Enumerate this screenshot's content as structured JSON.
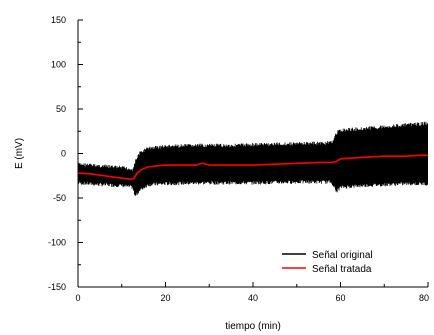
{
  "chart_data": {
    "type": "line",
    "title": "",
    "xlabel": "tiempo (min)",
    "ylabel": "E (mV)",
    "xlim": [
      0,
      80
    ],
    "ylim": [
      -150,
      150
    ],
    "x_ticks": [
      0,
      20,
      40,
      60,
      80
    ],
    "y_ticks": [
      -150,
      -100,
      -50,
      0,
      50,
      100,
      150
    ],
    "x_tick_labels": [
      "0",
      "20",
      "40",
      "60",
      "80"
    ],
    "y_tick_labels": [
      "-150",
      "-100",
      "-50",
      "0",
      "50",
      "100",
      "150"
    ],
    "grid": false,
    "legend_position": "bottom-right",
    "series": [
      {
        "name": "Señal original",
        "color": "#000000",
        "style": "noisy-band",
        "x": [
          0,
          5,
          10,
          12.5,
          13,
          14,
          16,
          20,
          28,
          35,
          40,
          50,
          58,
          59,
          60,
          65,
          70,
          75,
          80
        ],
        "upper": [
          -10,
          -12,
          -14,
          -16,
          -8,
          2,
          8,
          10,
          11,
          11,
          12,
          13,
          14,
          25,
          28,
          30,
          32,
          34,
          36
        ],
        "lower": [
          -35,
          -37,
          -38,
          -40,
          -50,
          -44,
          -37,
          -36,
          -35,
          -35,
          -35,
          -34,
          -34,
          -45,
          -40,
          -38,
          -37,
          -36,
          -36
        ]
      },
      {
        "name": "Señal tratada",
        "color": "#ff0000",
        "x": [
          0,
          3,
          6,
          9,
          12,
          12.8,
          13.5,
          14.5,
          16,
          18,
          20,
          24,
          27,
          28.5,
          30,
          35,
          40,
          45,
          50,
          55,
          58,
          59,
          60,
          63,
          66,
          70,
          75,
          78,
          80
        ],
        "values": [
          -22,
          -23,
          -25,
          -27,
          -29,
          -28,
          -22,
          -18,
          -15,
          -14,
          -13,
          -13,
          -13,
          -11,
          -13,
          -13,
          -13,
          -12,
          -11,
          -10,
          -10,
          -9,
          -6,
          -5,
          -4,
          -3,
          -3,
          -2,
          -2
        ]
      }
    ]
  }
}
